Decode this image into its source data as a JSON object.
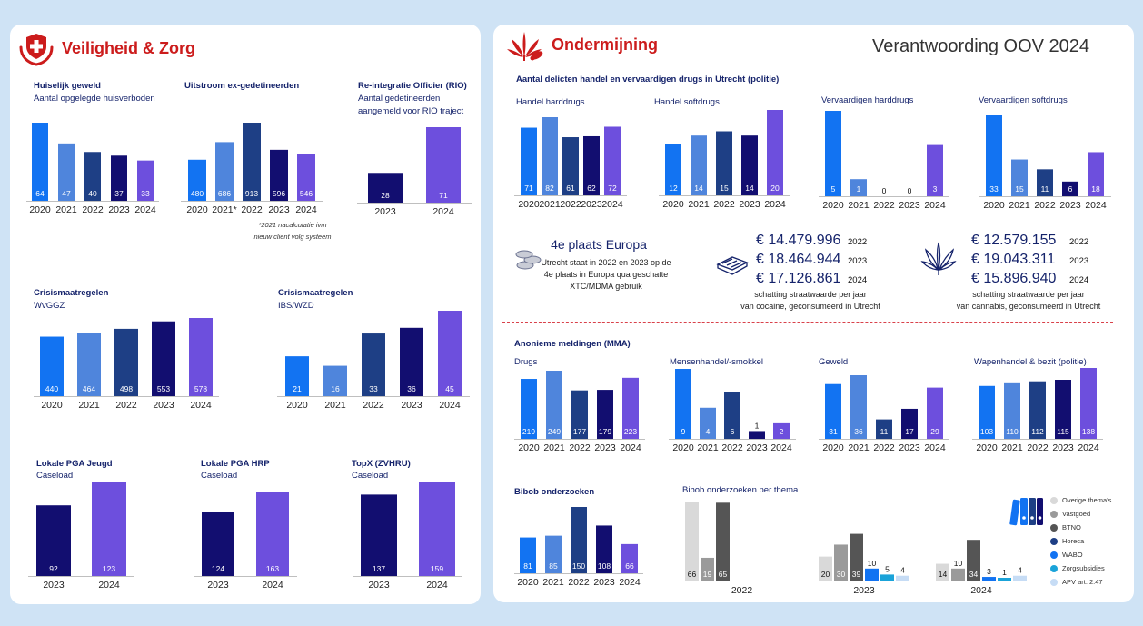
{
  "left_panel": {
    "title": "Veiligheid & Zorg",
    "icon": "shield-hands-icon"
  },
  "right_panel": {
    "title": "Ondermijning",
    "icon": "cannabis-leaf-icon",
    "report_title": "Verantwoording OOV 2024"
  },
  "colors": {
    "y2020": "#1273f2",
    "y2021": "#4f85dc",
    "y2022": "#1e3f85",
    "y2023": "#120e70",
    "y2024": "#6d4fdd",
    "overige": "#d9d9d9",
    "vastgoed": "#9a9a9a",
    "btno": "#555555",
    "horeca": "#1e3f85",
    "wabo": "#1273f2",
    "zorgsubsidies": "#1aa3d9",
    "apv": "#c6dcf5"
  },
  "drugs_section": {
    "title": "Aantal delicten handel en vervaardigen drugs in Utrecht (politie)"
  },
  "mma_section": {
    "title": "Anonieme meldingen (MMA)"
  },
  "europa": {
    "title": "4e plaats Europa",
    "lines": [
      "Utrecht staat in 2022 en 2023 op de",
      "4e plaats in Europa qua geschatte",
      "XTC/MDMA gebruik"
    ]
  },
  "cocaine": {
    "amounts": [
      {
        "value": "€ 14.479.996",
        "year": "2022"
      },
      {
        "value": "€ 18.464.944",
        "year": "2023"
      },
      {
        "value": "€ 17.126.861",
        "year": "2024"
      }
    ],
    "caption": [
      "schatting straatwaarde per jaar",
      "van cocaine, geconsumeerd in Utrecht"
    ]
  },
  "cannabis": {
    "amounts": [
      {
        "value": "€ 12.579.155",
        "year": "2022"
      },
      {
        "value": "€ 19.043.311",
        "year": "2023"
      },
      {
        "value": "€ 15.896.940",
        "year": "2024"
      }
    ],
    "caption": [
      "schatting straatwaarde per jaar",
      "van cannabis, geconsumeerd in Utrecht"
    ]
  },
  "chart_data": [
    {
      "id": "huiselijk",
      "type": "bar",
      "title": "Huiselijk geweld",
      "subtitle": "Aantal opgelegde huisverboden",
      "categories": [
        "2020",
        "2021",
        "2022",
        "2023",
        "2024"
      ],
      "values": [
        64,
        47,
        40,
        37,
        33
      ]
    },
    {
      "id": "uitstroom",
      "type": "bar",
      "title": "Uitstroom ex-gedetineerden",
      "subtitle": "",
      "categories": [
        "2020",
        "2021*",
        "2022",
        "2023",
        "2024"
      ],
      "values": [
        480,
        686,
        913,
        596,
        546
      ],
      "note": [
        "*2021 nacalculatie ivm",
        "nieuw client volg systeem"
      ]
    },
    {
      "id": "rio",
      "type": "bar",
      "title": "Re-integratie Officier (RIO)",
      "subtitle": [
        "Aantal gedetineerden",
        "aangemeld voor RIO traject"
      ],
      "categories": [
        "2023",
        "2024"
      ],
      "values": [
        28,
        71
      ]
    },
    {
      "id": "wvggz",
      "type": "bar",
      "title": "Crisismaatregelen",
      "subtitle": "WvGGZ",
      "categories": [
        "2020",
        "2021",
        "2022",
        "2023",
        "2024"
      ],
      "values": [
        440,
        464,
        498,
        553,
        578
      ]
    },
    {
      "id": "ibs",
      "type": "bar",
      "title": "Crisismaatregelen",
      "subtitle": "IBS/WZD",
      "categories": [
        "2020",
        "2021",
        "2022",
        "2023",
        "2024"
      ],
      "values": [
        21,
        16,
        33,
        36,
        45
      ]
    },
    {
      "id": "pga_jeugd",
      "type": "bar",
      "title": "Lokale PGA Jeugd",
      "subtitle": "Caseload",
      "categories": [
        "2023",
        "2024"
      ],
      "values": [
        92,
        123
      ]
    },
    {
      "id": "pga_hrp",
      "type": "bar",
      "title": "Lokale PGA HRP",
      "subtitle": "Caseload",
      "categories": [
        "2023",
        "2024"
      ],
      "values": [
        124,
        163
      ]
    },
    {
      "id": "topx",
      "type": "bar",
      "title": "TopX (ZVHRU)",
      "subtitle": "Caseload",
      "categories": [
        "2023",
        "2024"
      ],
      "values": [
        137,
        159
      ]
    },
    {
      "id": "harddrugs",
      "type": "bar",
      "title": "Handel harddrugs",
      "categories": [
        "2020",
        "2021",
        "2022",
        "2023",
        "2024"
      ],
      "values": [
        71,
        82,
        61,
        62,
        72
      ]
    },
    {
      "id": "softdrugs",
      "type": "bar",
      "title": "Handel softdrugs",
      "categories": [
        "2020",
        "2021",
        "2022",
        "2023",
        "2024"
      ],
      "values": [
        12,
        14,
        15,
        14,
        20
      ]
    },
    {
      "id": "vervaardigen_hard",
      "type": "bar",
      "title": "Vervaardigen harddrugs",
      "categories": [
        "2020",
        "2021",
        "2022",
        "2023",
        "2024"
      ],
      "values": [
        5,
        1,
        0,
        0,
        3
      ]
    },
    {
      "id": "vervaardigen_soft",
      "type": "bar",
      "title": "Vervaardigen softdrugs",
      "categories": [
        "2020",
        "2021",
        "2022",
        "2023",
        "2024"
      ],
      "values": [
        33,
        15,
        11,
        6,
        18
      ]
    },
    {
      "id": "mma_drugs",
      "type": "bar",
      "title": "Drugs",
      "categories": [
        "2020",
        "2021",
        "2022",
        "2023",
        "2024"
      ],
      "values": [
        219,
        249,
        177,
        179,
        223
      ]
    },
    {
      "id": "mma_mensenhandel",
      "type": "bar",
      "title": "Mensenhandel/-smokkel",
      "categories": [
        "2020",
        "2021",
        "2022",
        "2023",
        "2024"
      ],
      "values": [
        9,
        4,
        6,
        1,
        2
      ]
    },
    {
      "id": "mma_geweld",
      "type": "bar",
      "title": "Geweld",
      "categories": [
        "2020",
        "2021",
        "2022",
        "2023",
        "2024"
      ],
      "values": [
        31,
        36,
        11,
        17,
        29
      ]
    },
    {
      "id": "mma_wapens",
      "type": "bar",
      "title": "Wapenhandel & bezit (politie)",
      "categories": [
        "2020",
        "2021",
        "2022",
        "2023",
        "2024"
      ],
      "values": [
        103,
        110,
        112,
        115,
        138
      ]
    },
    {
      "id": "bibob",
      "type": "bar",
      "title": "Bibob onderzoeken",
      "categories": [
        "2020",
        "2021",
        "2022",
        "2023",
        "2024"
      ],
      "values": [
        81,
        85,
        150,
        108,
        66
      ]
    },
    {
      "id": "bibob_thema",
      "type": "bar",
      "title": "Bibob onderzoeken per thema",
      "categories": [
        "2022",
        "2023",
        "2024"
      ],
      "legend_position": "right",
      "series": [
        {
          "name": "Overige thema's",
          "values": [
            66,
            20,
            14
          ]
        },
        {
          "name": "Vastgoed",
          "values": [
            19,
            30,
            10
          ]
        },
        {
          "name": "BTNO",
          "values": [
            65,
            39,
            34
          ]
        },
        {
          "name": "Horeca",
          "values": [
            null,
            null,
            null
          ]
        },
        {
          "name": "WABO",
          "values": [
            null,
            10,
            3
          ]
        },
        {
          "name": "Zorgsubsidies",
          "values": [
            null,
            5,
            1
          ]
        },
        {
          "name": "APV art. 2.47",
          "values": [
            null,
            4,
            4
          ]
        }
      ]
    }
  ]
}
